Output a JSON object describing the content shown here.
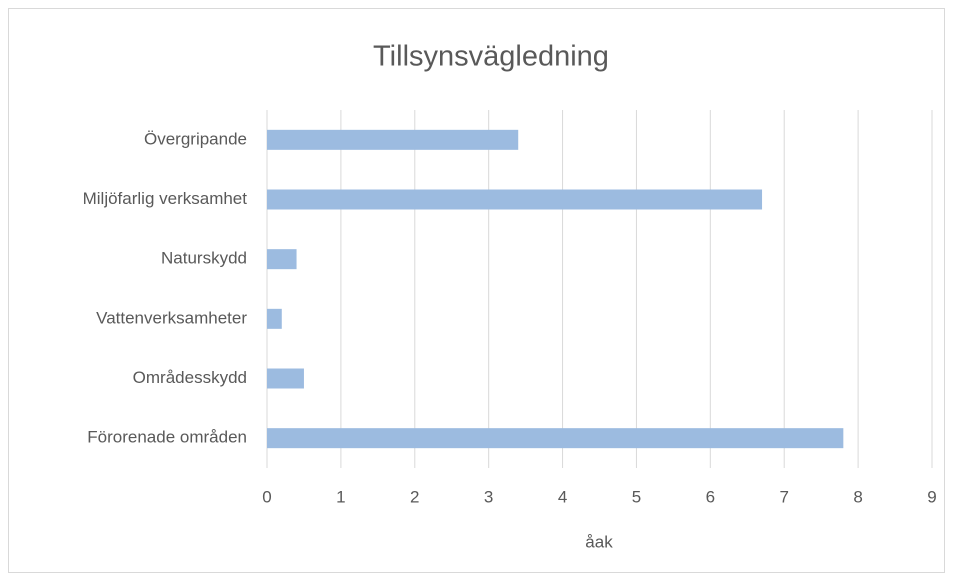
{
  "chart_data": {
    "type": "bar",
    "horizontal": true,
    "title": "Tillsynsvägledning",
    "x_label": "åak",
    "categories": [
      "Övergripande",
      "Miljöfarlig verksamhet",
      "Naturskydd",
      "Vattenverksamheter",
      "Områdesskydd",
      "Förorenade områden"
    ],
    "values": [
      3.4,
      6.7,
      0.4,
      0.2,
      0.5,
      7.8
    ],
    "color": "#9cbbe0",
    "xlim": [
      0,
      9
    ],
    "xticks": [
      0,
      1,
      2,
      3,
      4,
      5,
      6,
      7,
      8,
      9
    ],
    "grid": true
  }
}
